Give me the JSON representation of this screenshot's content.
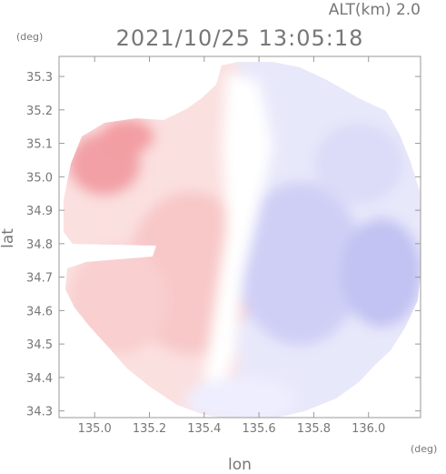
{
  "chart_data": {
    "type": "heatmap",
    "title": "2021/10/25 13:05:18",
    "altitude_label": "ALT(km) 2.0",
    "xlabel": "lon",
    "ylabel": "lat",
    "x_unit": "(deg)",
    "y_unit": "(deg)",
    "xlim": [
      134.87,
      136.19
    ],
    "ylim": [
      34.28,
      35.36
    ],
    "x_ticks": [
      "135.0",
      "135.2",
      "135.4",
      "135.6",
      "135.8",
      "136.0"
    ],
    "y_ticks": [
      "34.3",
      "34.4",
      "34.5",
      "34.6",
      "34.7",
      "34.8",
      "34.9",
      "35.0",
      "35.1",
      "35.2",
      "35.3"
    ],
    "radar_center": {
      "lon": 135.52,
      "lat": 34.82
    },
    "colors": {
      "positive_strong": "#f07a80",
      "positive_light": "#fbe3e3",
      "zero": "#ffffff",
      "negative_light": "#e6e6fb",
      "negative_strong": "#b8b8f2",
      "axis": "#999999"
    }
  }
}
